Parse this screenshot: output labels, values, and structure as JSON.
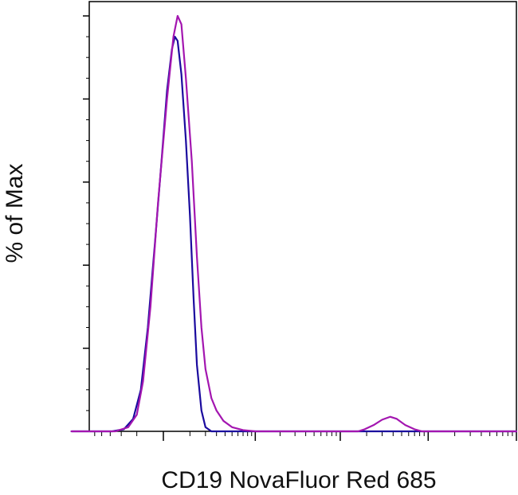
{
  "chart_data": {
    "type": "line",
    "title": "",
    "xlabel": "CD19 NovaFluor Red 685",
    "ylabel": "% of Max",
    "x_scale": "biexponential",
    "xlim": [
      -1000,
      1000000
    ],
    "ylim": [
      0,
      100
    ],
    "y_major_ticks": [
      0,
      20,
      40,
      60,
      80,
      100
    ],
    "x_major_ticks": [
      0,
      1000,
      10000,
      100000,
      1000000
    ],
    "grid": false,
    "legend": "none",
    "series": [
      {
        "color": "#1a0a9e",
        "points": [
          [
            -1000,
            0
          ],
          [
            -280,
            0
          ],
          [
            -180,
            0.5
          ],
          [
            -120,
            3
          ],
          [
            -80,
            10
          ],
          [
            -50,
            25
          ],
          [
            -25,
            45
          ],
          [
            -5,
            65
          ],
          [
            10,
            82
          ],
          [
            25,
            92
          ],
          [
            35,
            95
          ],
          [
            45,
            94
          ],
          [
            60,
            86
          ],
          [
            80,
            70
          ],
          [
            100,
            52
          ],
          [
            120,
            32
          ],
          [
            140,
            16
          ],
          [
            170,
            5
          ],
          [
            200,
            1
          ],
          [
            250,
            0
          ],
          [
            1000000,
            0
          ]
        ]
      },
      {
        "color": "#a316b0",
        "points": [
          [
            -1000,
            0
          ],
          [
            -250,
            0
          ],
          [
            -150,
            1
          ],
          [
            -100,
            4
          ],
          [
            -70,
            12
          ],
          [
            -40,
            30
          ],
          [
            -15,
            55
          ],
          [
            10,
            80
          ],
          [
            30,
            95
          ],
          [
            45,
            100
          ],
          [
            60,
            98
          ],
          [
            80,
            85
          ],
          [
            110,
            65
          ],
          [
            140,
            42
          ],
          [
            170,
            25
          ],
          [
            200,
            15
          ],
          [
            250,
            8
          ],
          [
            300,
            5
          ],
          [
            380,
            2.5
          ],
          [
            500,
            1
          ],
          [
            700,
            0.3
          ],
          [
            1000,
            0
          ],
          [
            16000,
            0
          ],
          [
            19000,
            0.5
          ],
          [
            24000,
            1.5
          ],
          [
            30000,
            2.8
          ],
          [
            37000,
            3.5
          ],
          [
            44000,
            3
          ],
          [
            55000,
            1.5
          ],
          [
            70000,
            0.5
          ],
          [
            85000,
            0
          ],
          [
            1000000,
            0
          ]
        ]
      }
    ]
  }
}
